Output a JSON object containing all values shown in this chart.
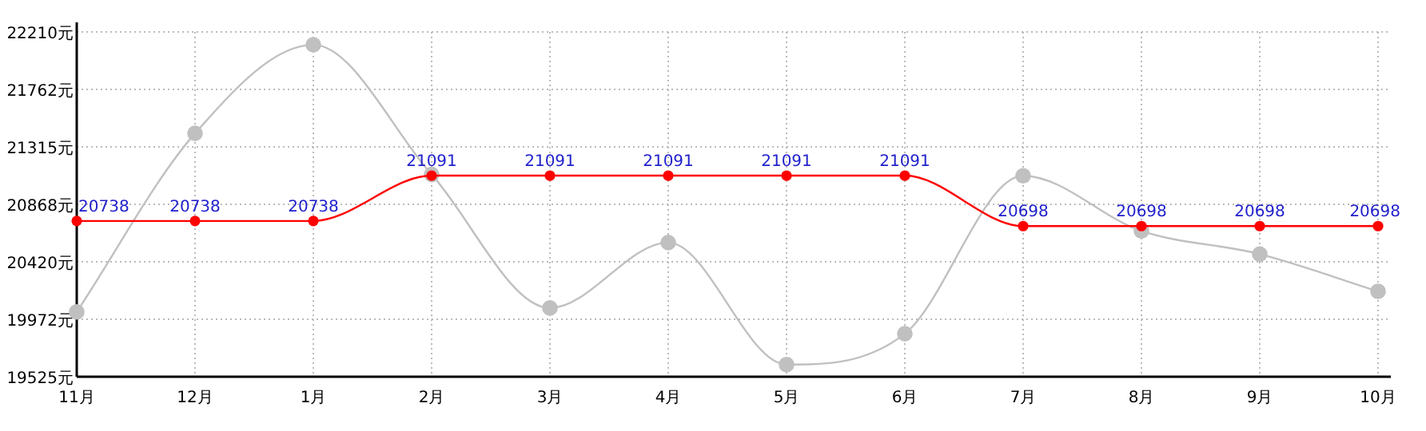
{
  "chart_data": {
    "type": "line",
    "categories": [
      "11月",
      "12月",
      "1月",
      "2月",
      "3月",
      "4月",
      "5月",
      "6月",
      "7月",
      "8月",
      "9月",
      "10月"
    ],
    "series": [
      {
        "color": "#c0c0c0",
        "values": [
          20030,
          21420,
          22110,
          21100,
          20060,
          20570,
          19620,
          19860,
          21090,
          20660,
          20480,
          20190
        ]
      },
      {
        "color": "#ff0000",
        "values": [
          20738,
          20738,
          20738,
          21091,
          21091,
          21091,
          21091,
          21091,
          20698,
          20698,
          20698,
          20698
        ],
        "value_labels": [
          "20738",
          "20738",
          "20738",
          "21091",
          "21091",
          "21091",
          "21091",
          "21091",
          "20698",
          "20698",
          "20698",
          "20698"
        ]
      }
    ],
    "ylim": [
      19525,
      22210
    ],
    "yticks": [
      {
        "value": 19525,
        "label": "19525元"
      },
      {
        "value": 19972,
        "label": "19972元"
      },
      {
        "value": 20420,
        "label": "20420元"
      },
      {
        "value": 20868,
        "label": "20868元"
      },
      {
        "value": 21315,
        "label": "21315元"
      },
      {
        "value": 21762,
        "label": "21762元"
      },
      {
        "value": 22210,
        "label": "22210元"
      }
    ],
    "grid": true,
    "marker": "circle",
    "line_style": "solid"
  }
}
